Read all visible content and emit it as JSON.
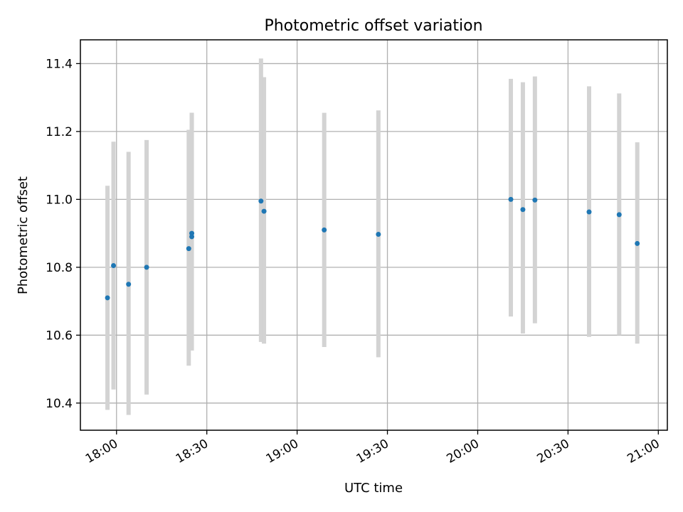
{
  "chart_data": {
    "type": "scatter",
    "title": "Photometric offset variation",
    "xlabel": "UTC time",
    "ylabel": "Photometric offset",
    "x_ticks": [
      "18:00",
      "18:30",
      "19:00",
      "19:30",
      "20:00",
      "20:30",
      "21:00"
    ],
    "y_ticks": [
      "10.4",
      "10.6",
      "10.8",
      "11.0",
      "11.2",
      "11.4"
    ],
    "xlim": [
      "17:48",
      "21:03"
    ],
    "ylim": [
      10.32,
      11.47
    ],
    "grid": true,
    "errorbar_color": "#d3d3d3",
    "marker_color": "#1f77b4",
    "points": [
      {
        "time": "17:57",
        "y": 10.71,
        "err_low": 10.38,
        "err_high": 11.04
      },
      {
        "time": "17:59",
        "y": 10.805,
        "err_low": 10.44,
        "err_high": 11.17
      },
      {
        "time": "18:04",
        "y": 10.75,
        "err_low": 10.365,
        "err_high": 11.14
      },
      {
        "time": "18:10",
        "y": 10.8,
        "err_low": 10.425,
        "err_high": 11.175
      },
      {
        "time": "18:24",
        "y": 10.855,
        "err_low": 10.51,
        "err_high": 11.205
      },
      {
        "time": "18:25",
        "y": 10.89,
        "err_low": 10.555,
        "err_high": 11.255
      },
      {
        "time": "18:25",
        "y": 10.9,
        "err_low": 10.555,
        "err_high": 11.255
      },
      {
        "time": "18:48",
        "y": 10.995,
        "err_low": 10.58,
        "err_high": 11.415
      },
      {
        "time": "18:49",
        "y": 10.965,
        "err_low": 10.575,
        "err_high": 11.36
      },
      {
        "time": "19:09",
        "y": 10.91,
        "err_low": 10.565,
        "err_high": 11.255
      },
      {
        "time": "19:27",
        "y": 10.897,
        "err_low": 10.535,
        "err_high": 11.262
      },
      {
        "time": "20:11",
        "y": 11.0,
        "err_low": 10.655,
        "err_high": 11.355
      },
      {
        "time": "20:15",
        "y": 10.97,
        "err_low": 10.605,
        "err_high": 11.345
      },
      {
        "time": "20:19",
        "y": 10.998,
        "err_low": 10.635,
        "err_high": 11.362
      },
      {
        "time": "20:37",
        "y": 10.963,
        "err_low": 10.595,
        "err_high": 11.333
      },
      {
        "time": "20:47",
        "y": 10.955,
        "err_low": 10.6,
        "err_high": 11.312
      },
      {
        "time": "20:53",
        "y": 10.87,
        "err_low": 10.575,
        "err_high": 11.168
      }
    ]
  }
}
